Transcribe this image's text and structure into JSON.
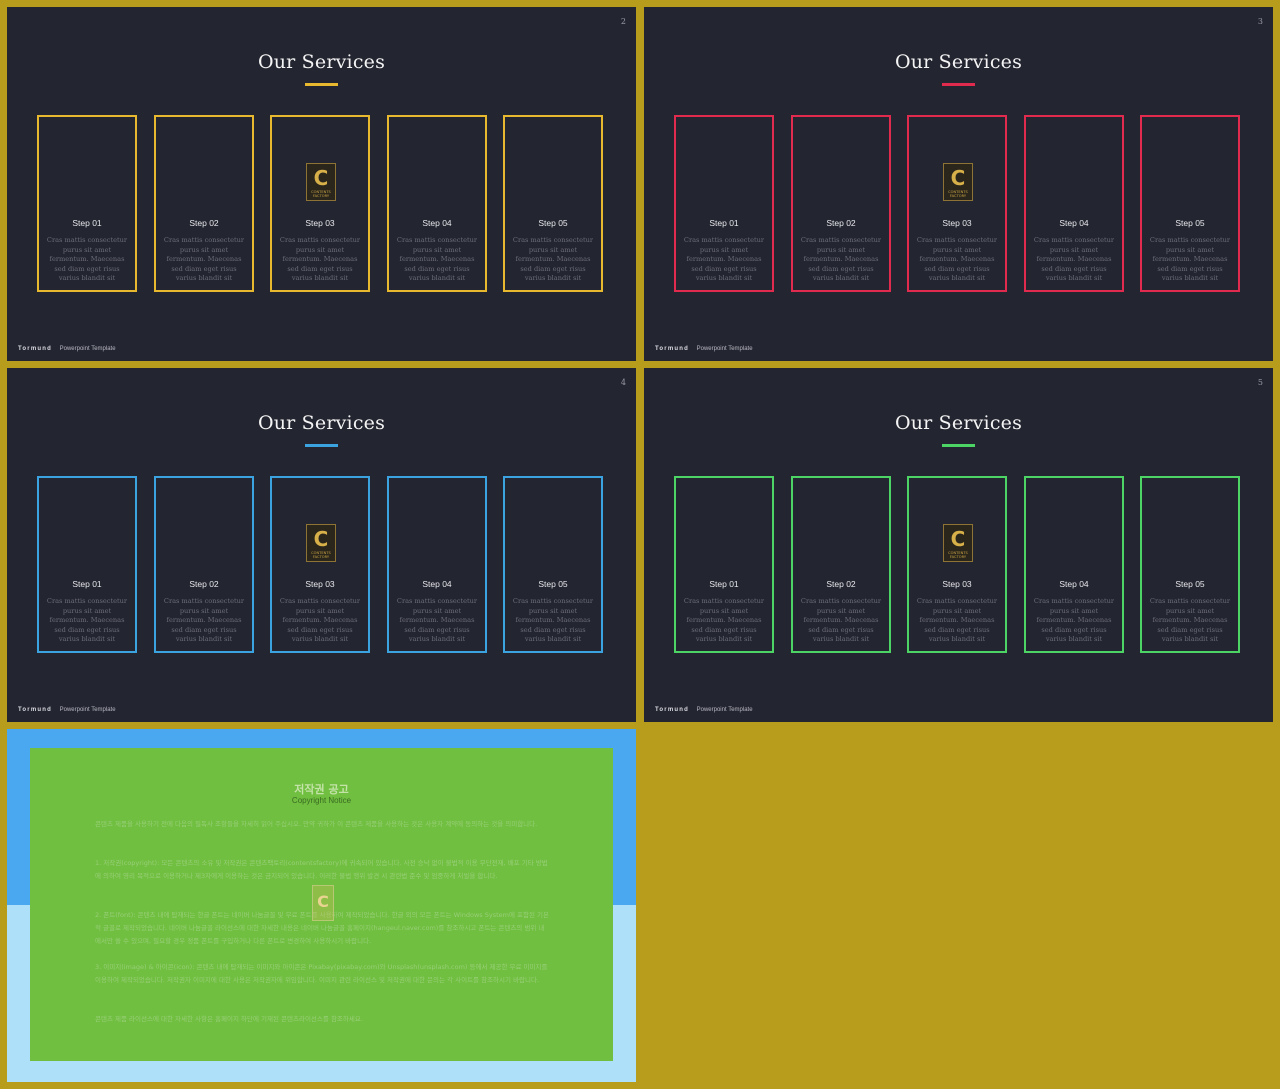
{
  "slides": [
    {
      "page": "2",
      "title": "Our Services",
      "accent": "#e8b82e",
      "cards": [
        {
          "step": "Step 01",
          "text": "Cras mattis consectetur purus sit amet fermentum. Maecenas sed diam eget risus varius blandit sit"
        },
        {
          "step": "Step 02",
          "text": "Cras mattis consectetur purus sit amet fermentum. Maecenas sed diam eget risus varius blandit sit"
        },
        {
          "step": "Step 03",
          "text": "Cras mattis consectetur purus sit amet fermentum. Maecenas sed diam eget risus varius blandit sit"
        },
        {
          "step": "Step 04",
          "text": "Cras mattis consectetur purus sit amet fermentum. Maecenas sed diam eget risus varius blandit sit"
        },
        {
          "step": "Step 05",
          "text": "Cras mattis consectetur purus sit amet fermentum. Maecenas sed diam eget risus varius blandit sit"
        }
      ],
      "footer_brand": "Tormund",
      "footer_text": "Powerpoint Template"
    },
    {
      "page": "3",
      "title": "Our Services",
      "accent": "#e02a4e",
      "cards": [
        {
          "step": "Step 01",
          "text": "Cras mattis consectetur purus sit amet fermentum. Maecenas sed diam eget risus varius blandit sit"
        },
        {
          "step": "Step 02",
          "text": "Cras mattis consectetur purus sit amet fermentum. Maecenas sed diam eget risus varius blandit sit"
        },
        {
          "step": "Step 03",
          "text": "Cras mattis consectetur purus sit amet fermentum. Maecenas sed diam eget risus varius blandit sit"
        },
        {
          "step": "Step 04",
          "text": "Cras mattis consectetur purus sit amet fermentum. Maecenas sed diam eget risus varius blandit sit"
        },
        {
          "step": "Step 05",
          "text": "Cras mattis consectetur purus sit amet fermentum. Maecenas sed diam eget risus varius blandit sit"
        }
      ],
      "footer_brand": "Tormund",
      "footer_text": "Powerpoint Template"
    },
    {
      "page": "4",
      "title": "Our Services",
      "accent": "#3aa3e0",
      "cards": [
        {
          "step": "Step 01",
          "text": "Cras mattis consectetur purus sit amet fermentum. Maecenas sed diam eget risus varius blandit sit"
        },
        {
          "step": "Step 02",
          "text": "Cras mattis consectetur purus sit amet fermentum. Maecenas sed diam eget risus varius blandit sit"
        },
        {
          "step": "Step 03",
          "text": "Cras mattis consectetur purus sit amet fermentum. Maecenas sed diam eget risus varius blandit sit"
        },
        {
          "step": "Step 04",
          "text": "Cras mattis consectetur purus sit amet fermentum. Maecenas sed diam eget risus varius blandit sit"
        },
        {
          "step": "Step 05",
          "text": "Cras mattis consectetur purus sit amet fermentum. Maecenas sed diam eget risus varius blandit sit"
        }
      ],
      "footer_brand": "Tormund",
      "footer_text": "Powerpoint Template"
    },
    {
      "page": "5",
      "title": "Our Services",
      "accent": "#4cd464",
      "cards": [
        {
          "step": "Step 01",
          "text": "Cras mattis consectetur purus sit amet fermentum. Maecenas sed diam eget risus varius blandit sit"
        },
        {
          "step": "Step 02",
          "text": "Cras mattis consectetur purus sit amet fermentum. Maecenas sed diam eget risus varius blandit sit"
        },
        {
          "step": "Step 03",
          "text": "Cras mattis consectetur purus sit amet fermentum. Maecenas sed diam eget risus varius blandit sit"
        },
        {
          "step": "Step 04",
          "text": "Cras mattis consectetur purus sit amet fermentum. Maecenas sed diam eget risus varius blandit sit"
        },
        {
          "step": "Step 05",
          "text": "Cras mattis consectetur purus sit amet fermentum. Maecenas sed diam eget risus varius blandit sit"
        }
      ],
      "footer_brand": "Tormund",
      "footer_text": "Powerpoint Template"
    }
  ],
  "logo": {
    "glyph": "C",
    "caption": "CONTENTS FACTORY",
    "icon": "contents-logo-icon"
  },
  "copyright": {
    "heading": "저작권 공고",
    "subheading": "Copyright Notice",
    "paragraphs": [
      "콘텐츠 제품을 사용하기 전에 다음의 필독사 조항들을 자세히 읽어 주십시오. 만약 귀하가 이 콘텐츠 제품을 사용하는 것은 사용자 계약에 동의하는 것을 의미합니다.",
      "1. 저작권(copyright): 모든 콘텐츠의 소유 및 저작권은 콘텐츠팩토리(contentsfactory)에 귀속되어 있습니다. 사전 승낙 없이 불법적 이용 무단전재, 배포 기타 방법에 의하여 영리 목적으로 이용하거나 제3자에게 이용하는 것은 금지되어 있습니다. 이러한 불법 행위 발견 시 관련법 준수 및 엄중하게 처벌을 합니다.",
      "2. 폰트(font): 콘텐츠 내에 탑재되는 한글 폰트는 네이버 나눔글꼴 및 무료 폰트를 사용하여 제작되었습니다. 한글 외의 모든 폰트는 Windows System에 포함된 기본적 글꼴로 제작되었습니다. 네이버 나눔글꼴 라이선스에 대한 자세한 내용은 네이버 나눔글꼴 홈페이지(hangeul.naver.com)를 참조하시고 폰트는 콘텐츠의 범위 내에서만 쓸 수 있으며, 필요할 경우 정품 폰트를 구입하거나 다른 폰트로 변경하여 사용하시기 바랍니다.",
      "3. 이미지(image) & 아이콘(icon): 콘텐츠 내에 탑재되는 이미지와 아이콘은 Pixabay(pixabay.com)와 Unsplash(unsplash.com) 등에서 제공한 무료 이미지를 이용하여 제작되었습니다. 저작권자 이미지에 대한 사용은 저작권자에 위임합니다. 이미지 관련 라이선스 및 저작권에 대한 문의는 각 사이트를 참조하시기 바랍니다.",
      "콘텐츠 제품 라이선스에 대한 자세한 사항은 홈페이지 하단에 기재된 콘텐츠라이선스를 참조하세요."
    ]
  }
}
